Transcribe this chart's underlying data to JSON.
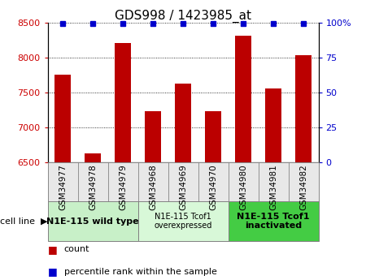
{
  "title": "GDS998 / 1423985_at",
  "samples": [
    "GSM34977",
    "GSM34978",
    "GSM34979",
    "GSM34968",
    "GSM34969",
    "GSM34970",
    "GSM34980",
    "GSM34981",
    "GSM34982"
  ],
  "counts": [
    7750,
    6630,
    8200,
    7230,
    7620,
    7230,
    8310,
    7560,
    8030
  ],
  "percentile_ranks": [
    99,
    99,
    99,
    99,
    99,
    99,
    99,
    99,
    99
  ],
  "ylim_left": [
    6500,
    8500
  ],
  "ylim_right": [
    0,
    100
  ],
  "yticks_left": [
    6500,
    7000,
    7500,
    8000,
    8500
  ],
  "yticks_right": [
    0,
    25,
    50,
    75,
    100
  ],
  "bar_color": "#bb0000",
  "dot_color": "#0000cc",
  "cell_line_groups": [
    {
      "label": "N1E-115 wild type",
      "start": 0,
      "end": 3,
      "bg": "#c8f0c8",
      "fontsize": 8,
      "bold": true
    },
    {
      "label": "N1E-115 Tcof1\noverexpressed",
      "start": 3,
      "end": 6,
      "bg": "#d8f8d8",
      "fontsize": 7,
      "bold": false
    },
    {
      "label": "N1E-115 Tcof1\ninactivated",
      "start": 6,
      "end": 9,
      "bg": "#44cc44",
      "fontsize": 8,
      "bold": true
    }
  ],
  "axis_label_color_left": "#cc0000",
  "axis_label_color_right": "#0000cc",
  "tick_label_fontsize": 7.5,
  "title_fontsize": 11
}
